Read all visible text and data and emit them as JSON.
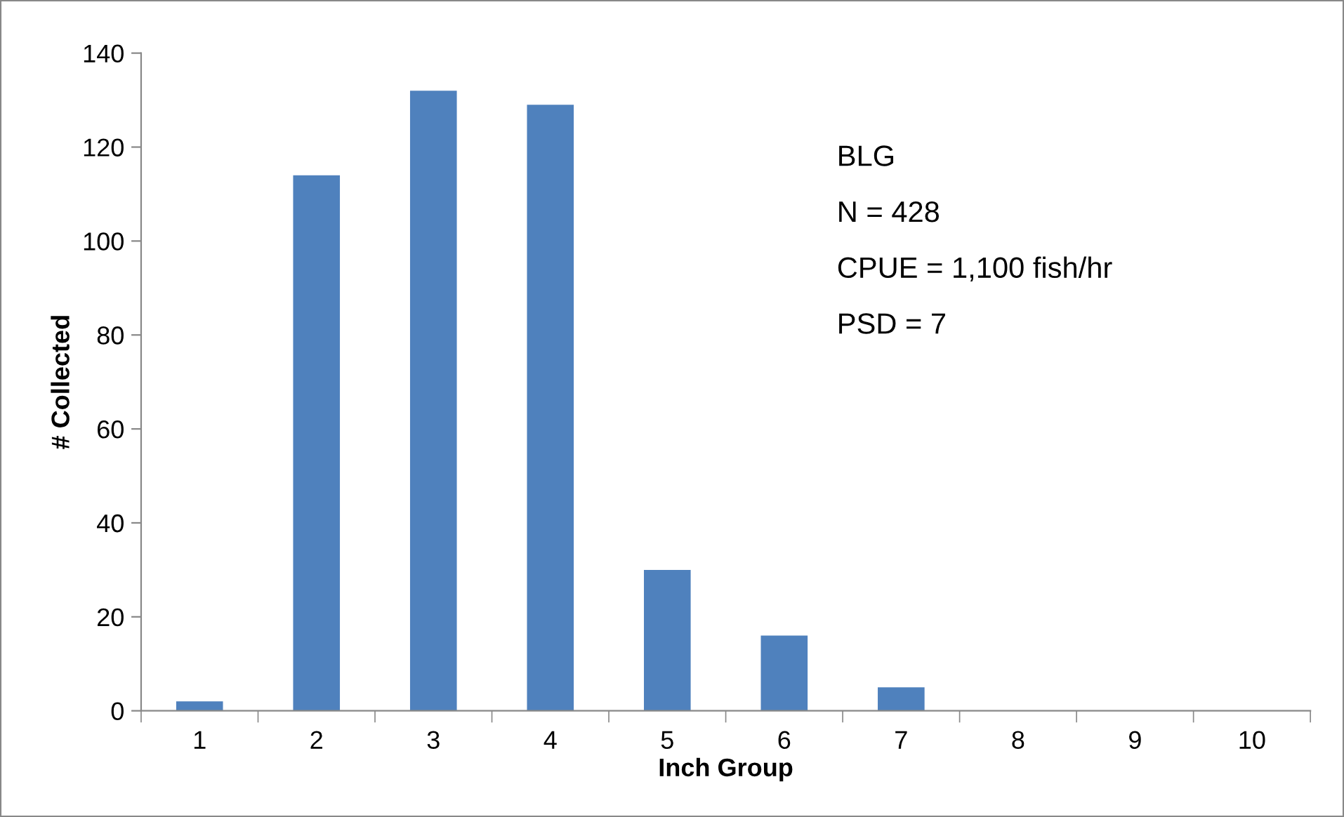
{
  "chart_data": {
    "type": "bar",
    "xlabel": "Inch Group",
    "ylabel": "# Collected",
    "categories": [
      "1",
      "2",
      "3",
      "4",
      "5",
      "6",
      "7",
      "8",
      "9",
      "10"
    ],
    "values": [
      2,
      114,
      132,
      129,
      30,
      16,
      5,
      0,
      0,
      0
    ],
    "color": "#4f81bd",
    "ylim": [
      0,
      140
    ],
    "yticks": [
      0,
      20,
      40,
      60,
      80,
      100,
      120,
      140
    ],
    "grid": false,
    "annotations": [
      "BLG",
      "N = 428",
      "CPUE = 1,100 fish/hr",
      "PSD = 7"
    ]
  }
}
